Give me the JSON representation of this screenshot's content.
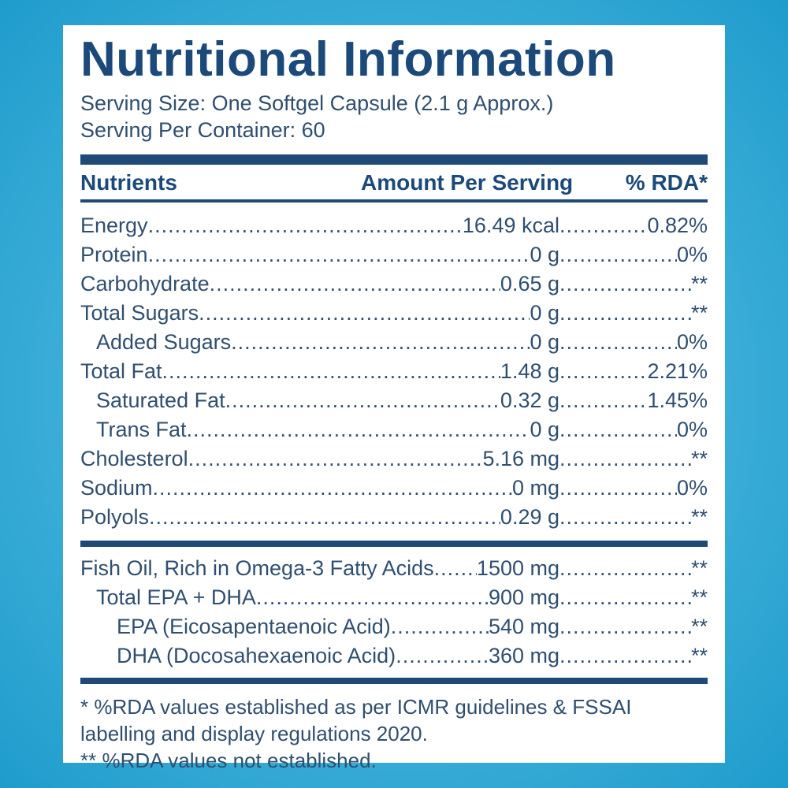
{
  "title": "Nutritional Information",
  "serving_size": "Serving Size: One Softgel Capsule (2.1 g Approx.)",
  "serving_per_container": "Serving Per Container: 60",
  "header": {
    "nutrients": "Nutrients",
    "amount": "Amount Per Serving",
    "rda": "% RDA*"
  },
  "nutrients": [
    {
      "name": "Energy",
      "amount": "16.49 kcal",
      "rda": "0.82%"
    },
    {
      "name": "Protein",
      "amount": "0 g",
      "rda": "0%"
    },
    {
      "name": "Carbohydrate",
      "amount": "0.65 g",
      "rda": "**"
    },
    {
      "name": "Total Sugars",
      "amount": "0 g",
      "rda": "**"
    },
    {
      "name": "Added Sugars",
      "amount": "0 g",
      "rda": "0%"
    },
    {
      "name": "Total Fat",
      "amount": "1.48 g",
      "rda": "2.21%"
    },
    {
      "name": "Saturated Fat",
      "amount": "0.32 g",
      "rda": "1.45%"
    },
    {
      "name": "Trans Fat",
      "amount": "0 g",
      "rda": "0%"
    },
    {
      "name": "Cholesterol",
      "amount": "5.16 mg",
      "rda": "**"
    },
    {
      "name": "Sodium",
      "amount": "0 mg",
      "rda": "0%"
    },
    {
      "name": "Polyols",
      "amount": "0.29 g",
      "rda": "**"
    }
  ],
  "fish_oil": [
    {
      "name": "Fish Oil, Rich in Omega-3 Fatty Acids",
      "amount": "1500 mg",
      "rda": "**"
    },
    {
      "name": "Total EPA + DHA",
      "amount": "900 mg",
      "rda": "**"
    },
    {
      "name": "EPA (Eicosapentaenoic Acid)",
      "amount": "540 mg",
      "rda": "**"
    },
    {
      "name": "DHA (Docosahexaenoic Acid)",
      "amount": "360 mg",
      "rda": "**"
    }
  ],
  "footnotes": {
    "line1": "* %RDA values established as per ICMR guidelines & FSSAI",
    "line2": "labelling and display regulations 2020.",
    "line3": "** %RDA values not established."
  }
}
